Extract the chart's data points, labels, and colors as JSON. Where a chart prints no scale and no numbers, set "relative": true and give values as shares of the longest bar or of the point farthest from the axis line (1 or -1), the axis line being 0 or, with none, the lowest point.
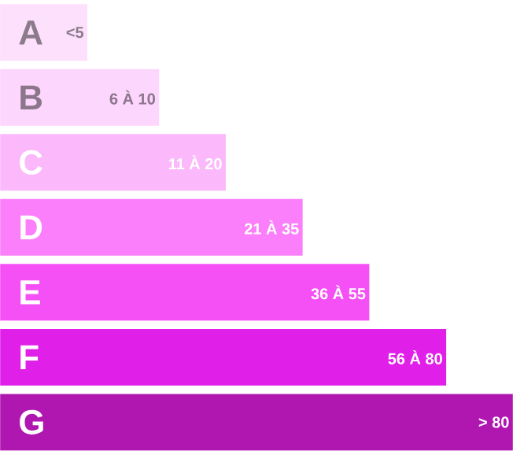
{
  "chart_data": {
    "type": "bar",
    "orientation": "horizontal",
    "relative": true,
    "categories": [
      "A",
      "B",
      "C",
      "D",
      "E",
      "F",
      "G"
    ],
    "values": [
      0.17,
      0.31,
      0.44,
      0.59,
      0.72,
      0.87,
      1
    ],
    "colors": [
      "#fce0fc",
      "#fdd6fd",
      "#fbb9fb",
      "#fb7ffb",
      "#f550f5",
      "#e020e8",
      "#b016b0"
    ],
    "annotations": [
      "<5",
      "6 À 10",
      "11 À 20",
      "21 À 35",
      "36 À 55",
      "56 À 80",
      "> 80"
    ]
  }
}
